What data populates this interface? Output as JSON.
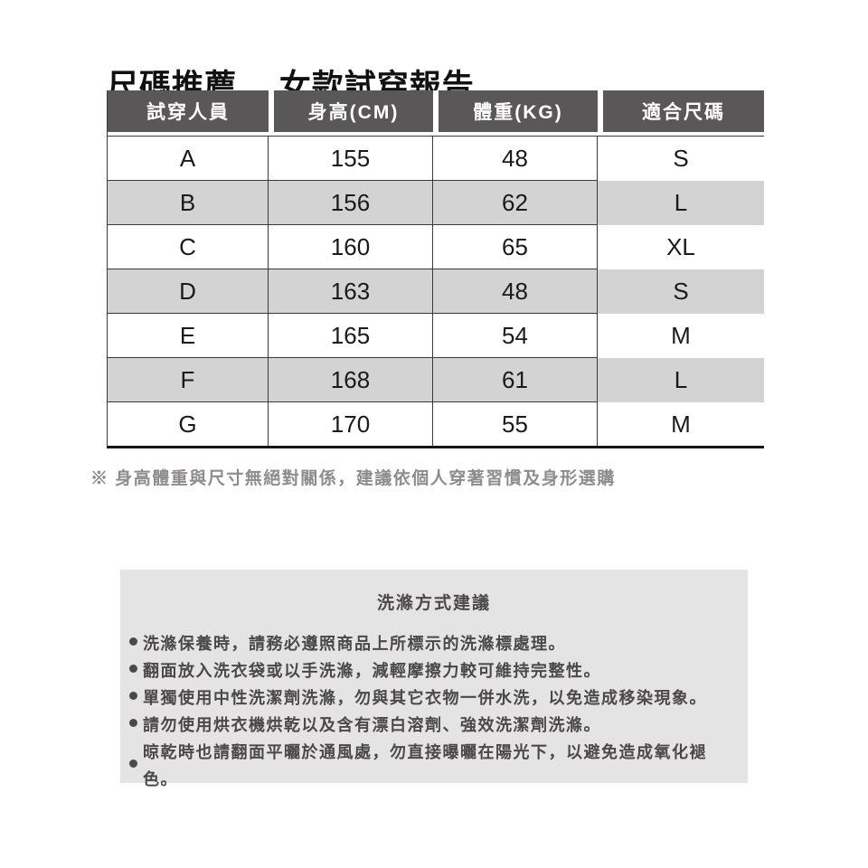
{
  "page": {
    "title": "尺碼推薦　 女款試穿報告"
  },
  "size_table": {
    "headers": [
      "試穿人員",
      "身高(CM)",
      "體重(KG)",
      "適合尺碼"
    ],
    "rows": [
      {
        "person": "A",
        "height": "155",
        "weight": "48",
        "size": "S"
      },
      {
        "person": "B",
        "height": "156",
        "weight": "62",
        "size": "L"
      },
      {
        "person": "C",
        "height": "160",
        "weight": "65",
        "size": "XL"
      },
      {
        "person": "D",
        "height": "163",
        "weight": "48",
        "size": "S"
      },
      {
        "person": "E",
        "height": "165",
        "weight": "54",
        "size": "M"
      },
      {
        "person": "F",
        "height": "168",
        "weight": "61",
        "size": "L"
      },
      {
        "person": "G",
        "height": "170",
        "weight": "55",
        "size": "M"
      }
    ]
  },
  "note": "※ 身高體重與尺寸無絕對關係，建議依個人穿著習慣及身形選購",
  "care_box": {
    "title": "洗滌方式建議",
    "items": [
      "洗滌保養時，請務必遵照商品上所標示的洗滌標處理。",
      "翻面放入洗衣袋或以手洗滌，減輕摩擦力較可維持完整性。",
      "單獨使用中性洗潔劑洗滌，勿與其它衣物一併水洗，以免造成移染現象。",
      "請勿使用烘衣機烘乾以及含有漂白溶劑、強效洗潔劑洗滌。",
      "晾乾時也請翻面平曬於通風處，勿直接曝曬在陽光下，以避免造成氧化褪色。"
    ]
  },
  "colors": {
    "header_bg": "#595757",
    "row_alt_bg": "#d3d3d3",
    "care_box_bg": "#e5e4e4",
    "border": "#3b3939",
    "note_text": "#8e8c8c",
    "care_text": "#4a4848"
  }
}
